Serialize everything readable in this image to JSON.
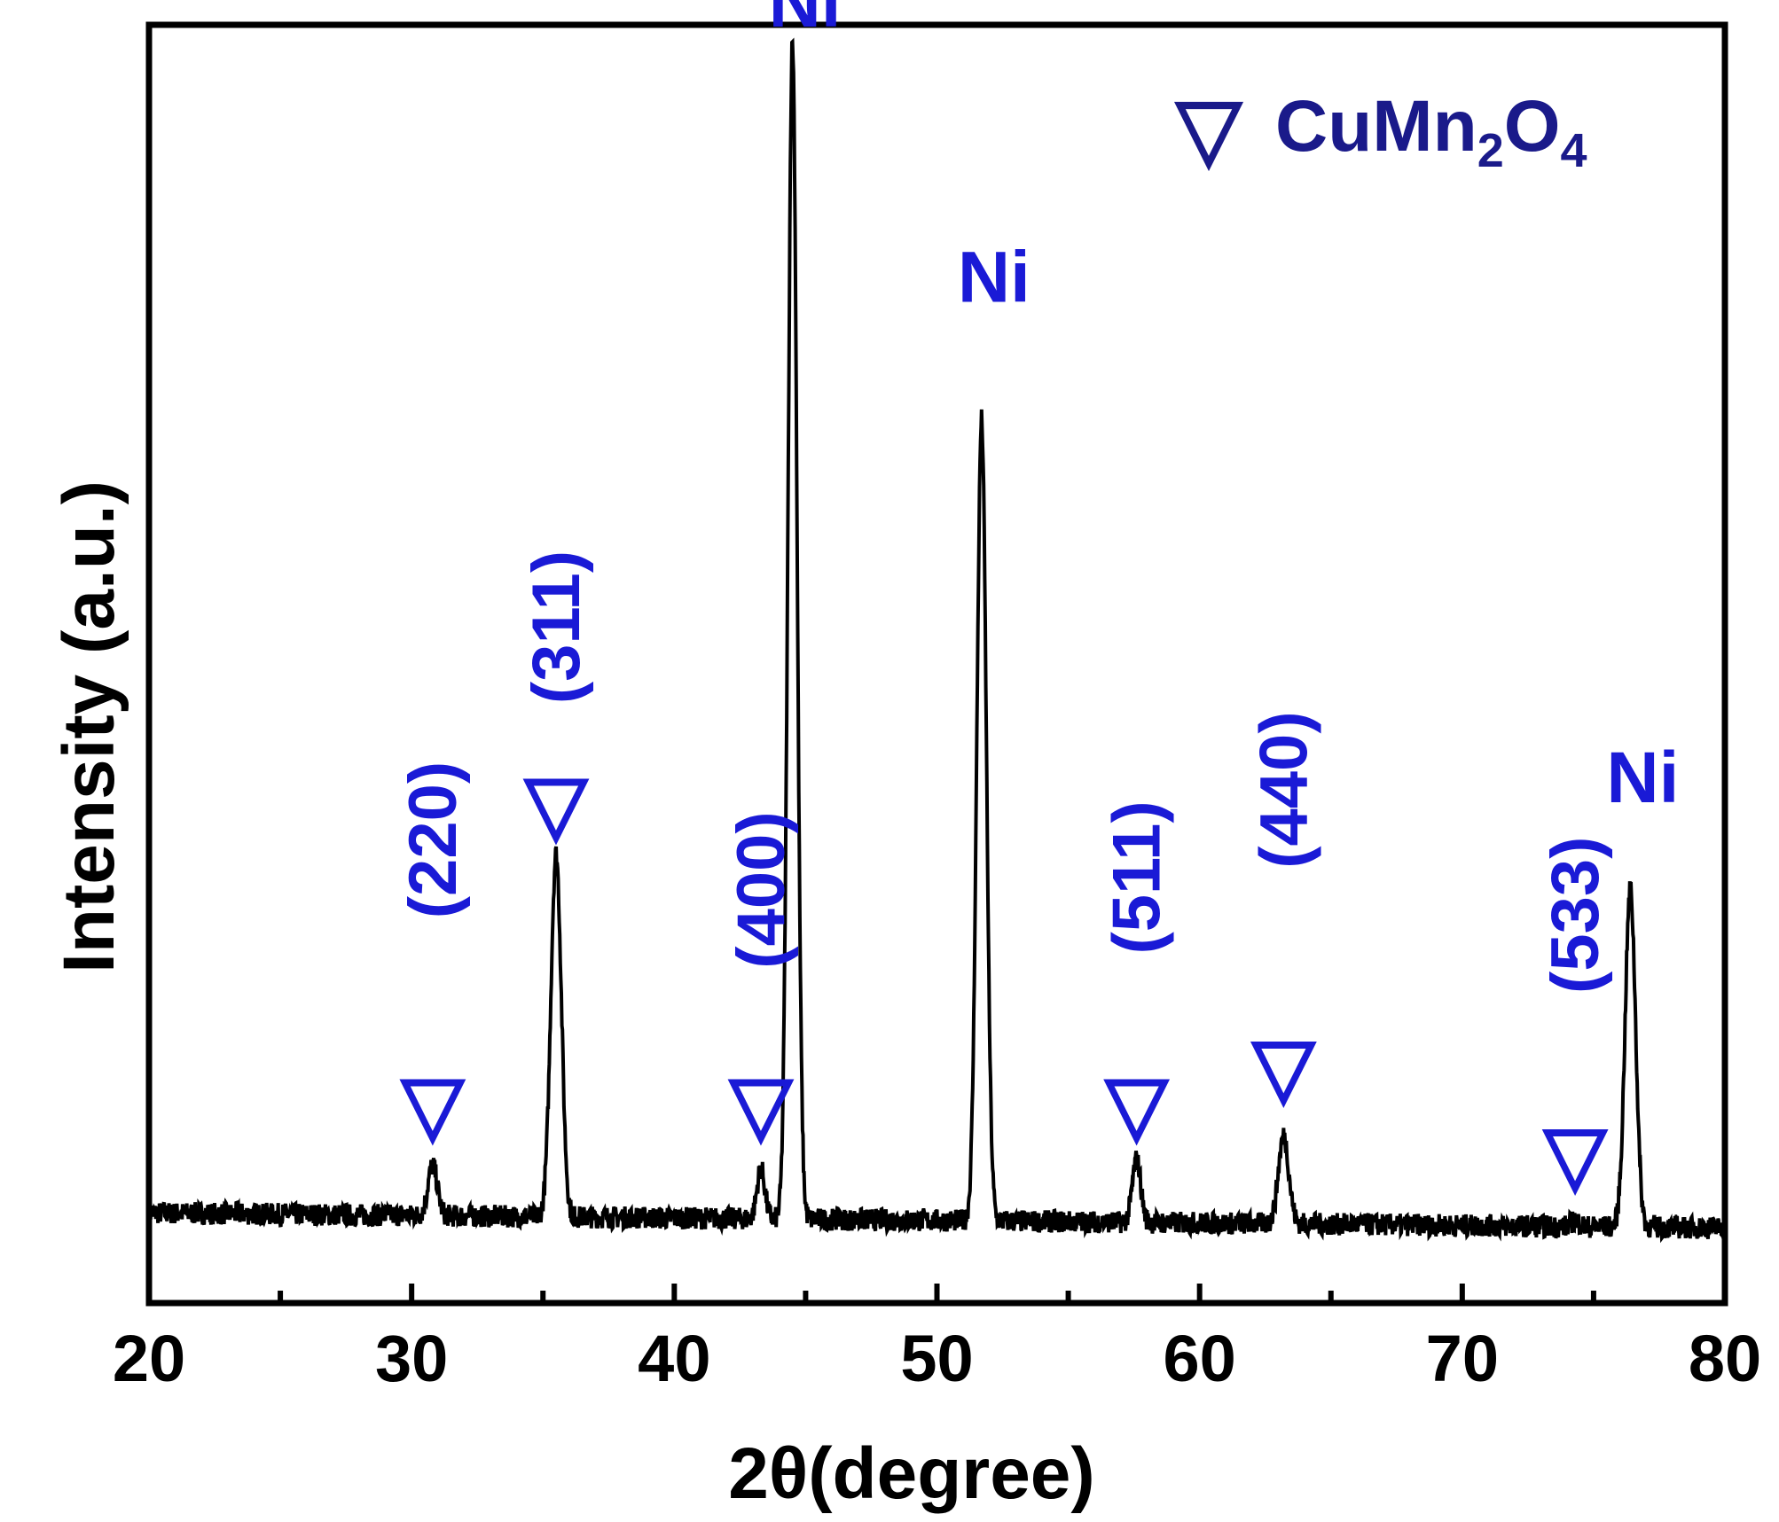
{
  "chart_data": {
    "type": "line",
    "xlabel": "2θ(degree)",
    "ylabel": "Intensity (a.u.)",
    "xlim": [
      20,
      80
    ],
    "ylim": [
      0,
      100
    ],
    "x_ticks": [
      "20",
      "30",
      "40",
      "50",
      "60",
      "70",
      "80"
    ],
    "y_ticks_shown": false,
    "grid": false,
    "line_color": "#000000",
    "label_color": "#1a1ad6",
    "legend": {
      "marker": "▽",
      "text": "CuMn",
      "sub1": "2",
      "mid": "O",
      "sub2": "4",
      "placement": "top-right",
      "color": "#1a1a8a"
    },
    "baseline": 6,
    "peaks": [
      {
        "x": 30.8,
        "y": 10,
        "width": 0.18
      },
      {
        "x": 35.5,
        "y": 35,
        "width": 0.2
      },
      {
        "x": 43.3,
        "y": 10,
        "width": 0.15
      },
      {
        "x": 44.5,
        "y": 100,
        "width": 0.17
      },
      {
        "x": 51.7,
        "y": 70,
        "width": 0.18
      },
      {
        "x": 57.6,
        "y": 11,
        "width": 0.16
      },
      {
        "x": 63.2,
        "y": 13,
        "width": 0.2
      },
      {
        "x": 74.3,
        "y": 6.5,
        "width": 0.15
      },
      {
        "x": 76.4,
        "y": 33,
        "width": 0.2
      }
    ],
    "annotations": [
      {
        "text": "(220)",
        "x": 30.8,
        "y": 37,
        "marker": true,
        "marker_y": 16,
        "rotated": true
      },
      {
        "text": "(311)",
        "x": 35.5,
        "y": 54,
        "marker": true,
        "marker_y": 40,
        "rotated": true
      },
      {
        "text": "(400)",
        "x": 43.3,
        "y": 33,
        "marker": true,
        "marker_y": 16,
        "rotated": true
      },
      {
        "text": "Ni",
        "x": 44.5,
        "y": 102,
        "marker": false,
        "rotated": false
      },
      {
        "text": "Ni",
        "x": 51.7,
        "y": 80,
        "marker": false,
        "rotated": false
      },
      {
        "text": "(511)",
        "x": 57.6,
        "y": 34,
        "marker": true,
        "marker_y": 16,
        "rotated": true
      },
      {
        "text": "(440)",
        "x": 63.2,
        "y": 41,
        "marker": true,
        "marker_y": 19,
        "rotated": true
      },
      {
        "text": "(533)",
        "x": 74.3,
        "y": 31,
        "marker": true,
        "marker_y": 12,
        "rotated": true
      },
      {
        "text": "Ni",
        "x": 76.4,
        "y": 40,
        "marker": false,
        "rotated": false
      }
    ]
  }
}
